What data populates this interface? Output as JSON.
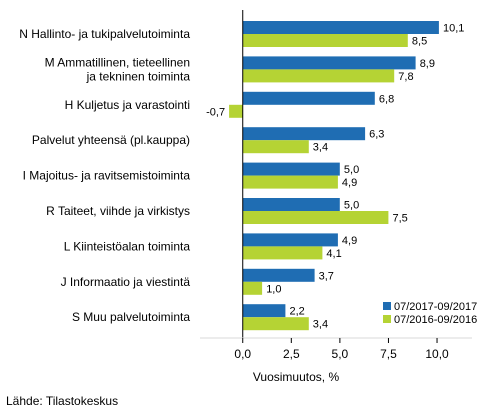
{
  "chart_data": {
    "type": "bar",
    "orientation": "horizontal",
    "categories": [
      [
        "N Hallinto- ja tukipalvelutoiminta"
      ],
      [
        "M Ammatillinen, tieteellinen",
        "ja tekninen toiminta"
      ],
      [
        "H Kuljetus ja varastointi"
      ],
      [
        "Palvelut yhteensä (pl.kauppa)"
      ],
      [
        "I Majoitus- ja ravitsemistoiminta"
      ],
      [
        "R Taiteet, viihde ja virkistys"
      ],
      [
        "L Kiinteistöalan toiminta"
      ],
      [
        "J Informaatio ja viestintä"
      ],
      [
        "S Muu palvelutoiminta"
      ]
    ],
    "series": [
      {
        "name": "07/2017-09/2017",
        "color": "#1f6db3",
        "values": [
          10.1,
          8.9,
          6.8,
          6.3,
          5.0,
          5.0,
          4.9,
          3.7,
          2.2
        ],
        "labels": [
          "10,1",
          "8,9",
          "6,8",
          "6,3",
          "5,0",
          "5,0",
          "4,9",
          "3,7",
          "2,2"
        ]
      },
      {
        "name": "07/2016-09/2016",
        "color": "#b5d334",
        "values": [
          8.5,
          7.8,
          -0.7,
          3.4,
          4.9,
          7.5,
          4.1,
          1.0,
          3.4
        ],
        "labels": [
          "8,5",
          "7,8",
          "-0,7",
          "3,4",
          "4,9",
          "7,5",
          "4,1",
          "1,0",
          "3,4"
        ]
      }
    ],
    "xlim": [
      -2.2,
      11.8
    ],
    "xticks": [
      0,
      2.5,
      5,
      7.5,
      10
    ],
    "xtick_labels": [
      "0,0",
      "2,5",
      "5,0",
      "7,5",
      "10,0"
    ],
    "xlabel": "Vuosimuutos, %",
    "ylabel": "",
    "title": "",
    "grid": false,
    "legend_position": "bottom-right"
  },
  "source": "Lähde: Tilastokeskus"
}
